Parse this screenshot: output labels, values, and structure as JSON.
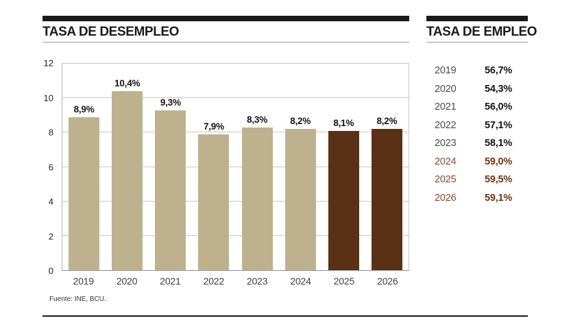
{
  "left_panel": {
    "title": "TASA DE DESEMPLEO",
    "source": "Fuente: INE, BCU."
  },
  "right_panel": {
    "title": "TASA DE EMPLEO",
    "rows": [
      {
        "year": "2019",
        "value": "56,7%",
        "highlight": false
      },
      {
        "year": "2020",
        "value": "54,3%",
        "highlight": false
      },
      {
        "year": "2021",
        "value": "56,0%",
        "highlight": false
      },
      {
        "year": "2022",
        "value": "57,1%",
        "highlight": false
      },
      {
        "year": "2023",
        "value": "58,1%",
        "highlight": false
      },
      {
        "year": "2024",
        "value": "59,0%",
        "highlight": true
      },
      {
        "year": "2025",
        "value": "59,5%",
        "highlight": true
      },
      {
        "year": "2026",
        "value": "59,1%",
        "highlight": true
      }
    ]
  },
  "chart_data": {
    "type": "bar",
    "title": "TASA DE DESEMPLEO",
    "categories": [
      "2019",
      "2020",
      "2021",
      "2022",
      "2023",
      "2024",
      "2025",
      "2026"
    ],
    "values": [
      8.9,
      10.4,
      9.3,
      7.9,
      8.3,
      8.2,
      8.1,
      8.2
    ],
    "bar_labels": [
      "8,9%",
      "10,4%",
      "9,3%",
      "7,9%",
      "8,3%",
      "8,2%",
      "8,1%",
      "8,2%"
    ],
    "highlight": [
      false,
      false,
      false,
      false,
      false,
      false,
      true,
      true
    ],
    "xlabel": "",
    "ylabel": "",
    "ylim": [
      0,
      12
    ],
    "yticks": [
      0,
      2,
      4,
      6,
      8,
      10,
      12
    ],
    "grid": true,
    "legend_position": "none",
    "colors": {
      "bar": "#beb28e",
      "bar_highlight": "#5a3114"
    }
  },
  "colors": {
    "header_bar": "#1a1a1a",
    "title_rule": "#9a9a9a",
    "gridline": "#c9c9c9",
    "axis_line": "#8f8f8f",
    "highlight_year_text": "#8a4a28",
    "highlight_value_text": "#6e3413",
    "bottom_rule": "#1a1a1a"
  }
}
